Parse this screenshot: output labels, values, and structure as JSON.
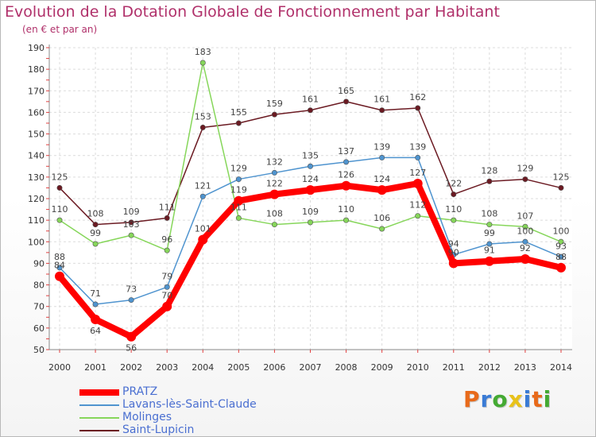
{
  "header": {
    "title": "Evolution de la Dotation Globale de Fonctionnement par Habitant",
    "subtitle": "(en € et par an)"
  },
  "logo": {
    "text": "Proxiti",
    "colors": [
      "#e86a1a",
      "#3a7bd5",
      "#44aa33",
      "#e8c21a",
      "#3a7bd5",
      "#e86a1a",
      "#44aa33"
    ]
  },
  "chart_data": {
    "type": "line",
    "x": [
      2000,
      2001,
      2002,
      2003,
      2004,
      2005,
      2006,
      2007,
      2008,
      2009,
      2010,
      2011,
      2012,
      2013,
      2014
    ],
    "ylim": [
      50,
      190
    ],
    "yticks": [
      50,
      60,
      70,
      80,
      90,
      100,
      110,
      120,
      130,
      140,
      150,
      160,
      170,
      180,
      190
    ],
    "grid": true,
    "legend_position": "bottom-left",
    "series": [
      {
        "name": "PRATZ",
        "color": "#ff0000",
        "values": [
          84,
          64,
          56,
          70,
          101,
          119,
          122,
          124,
          126,
          124,
          127,
          90,
          91,
          92,
          88
        ]
      },
      {
        "name": "Lavans-lès-Saint-Claude",
        "color": "#4f94cf",
        "values": [
          88,
          71,
          73,
          79,
          121,
          129,
          132,
          135,
          137,
          139,
          139,
          94,
          99,
          100,
          93
        ]
      },
      {
        "name": "Molinges",
        "color": "#86d65a",
        "values": [
          110,
          99,
          103,
          96,
          183,
          111,
          108,
          109,
          110,
          106,
          112,
          110,
          108,
          107,
          100
        ]
      },
      {
        "name": "Saint-Lupicin",
        "color": "#6b1a22",
        "values": [
          125,
          108,
          109,
          111,
          153,
          155,
          159,
          161,
          165,
          161,
          162,
          122,
          128,
          129,
          125
        ]
      }
    ]
  }
}
